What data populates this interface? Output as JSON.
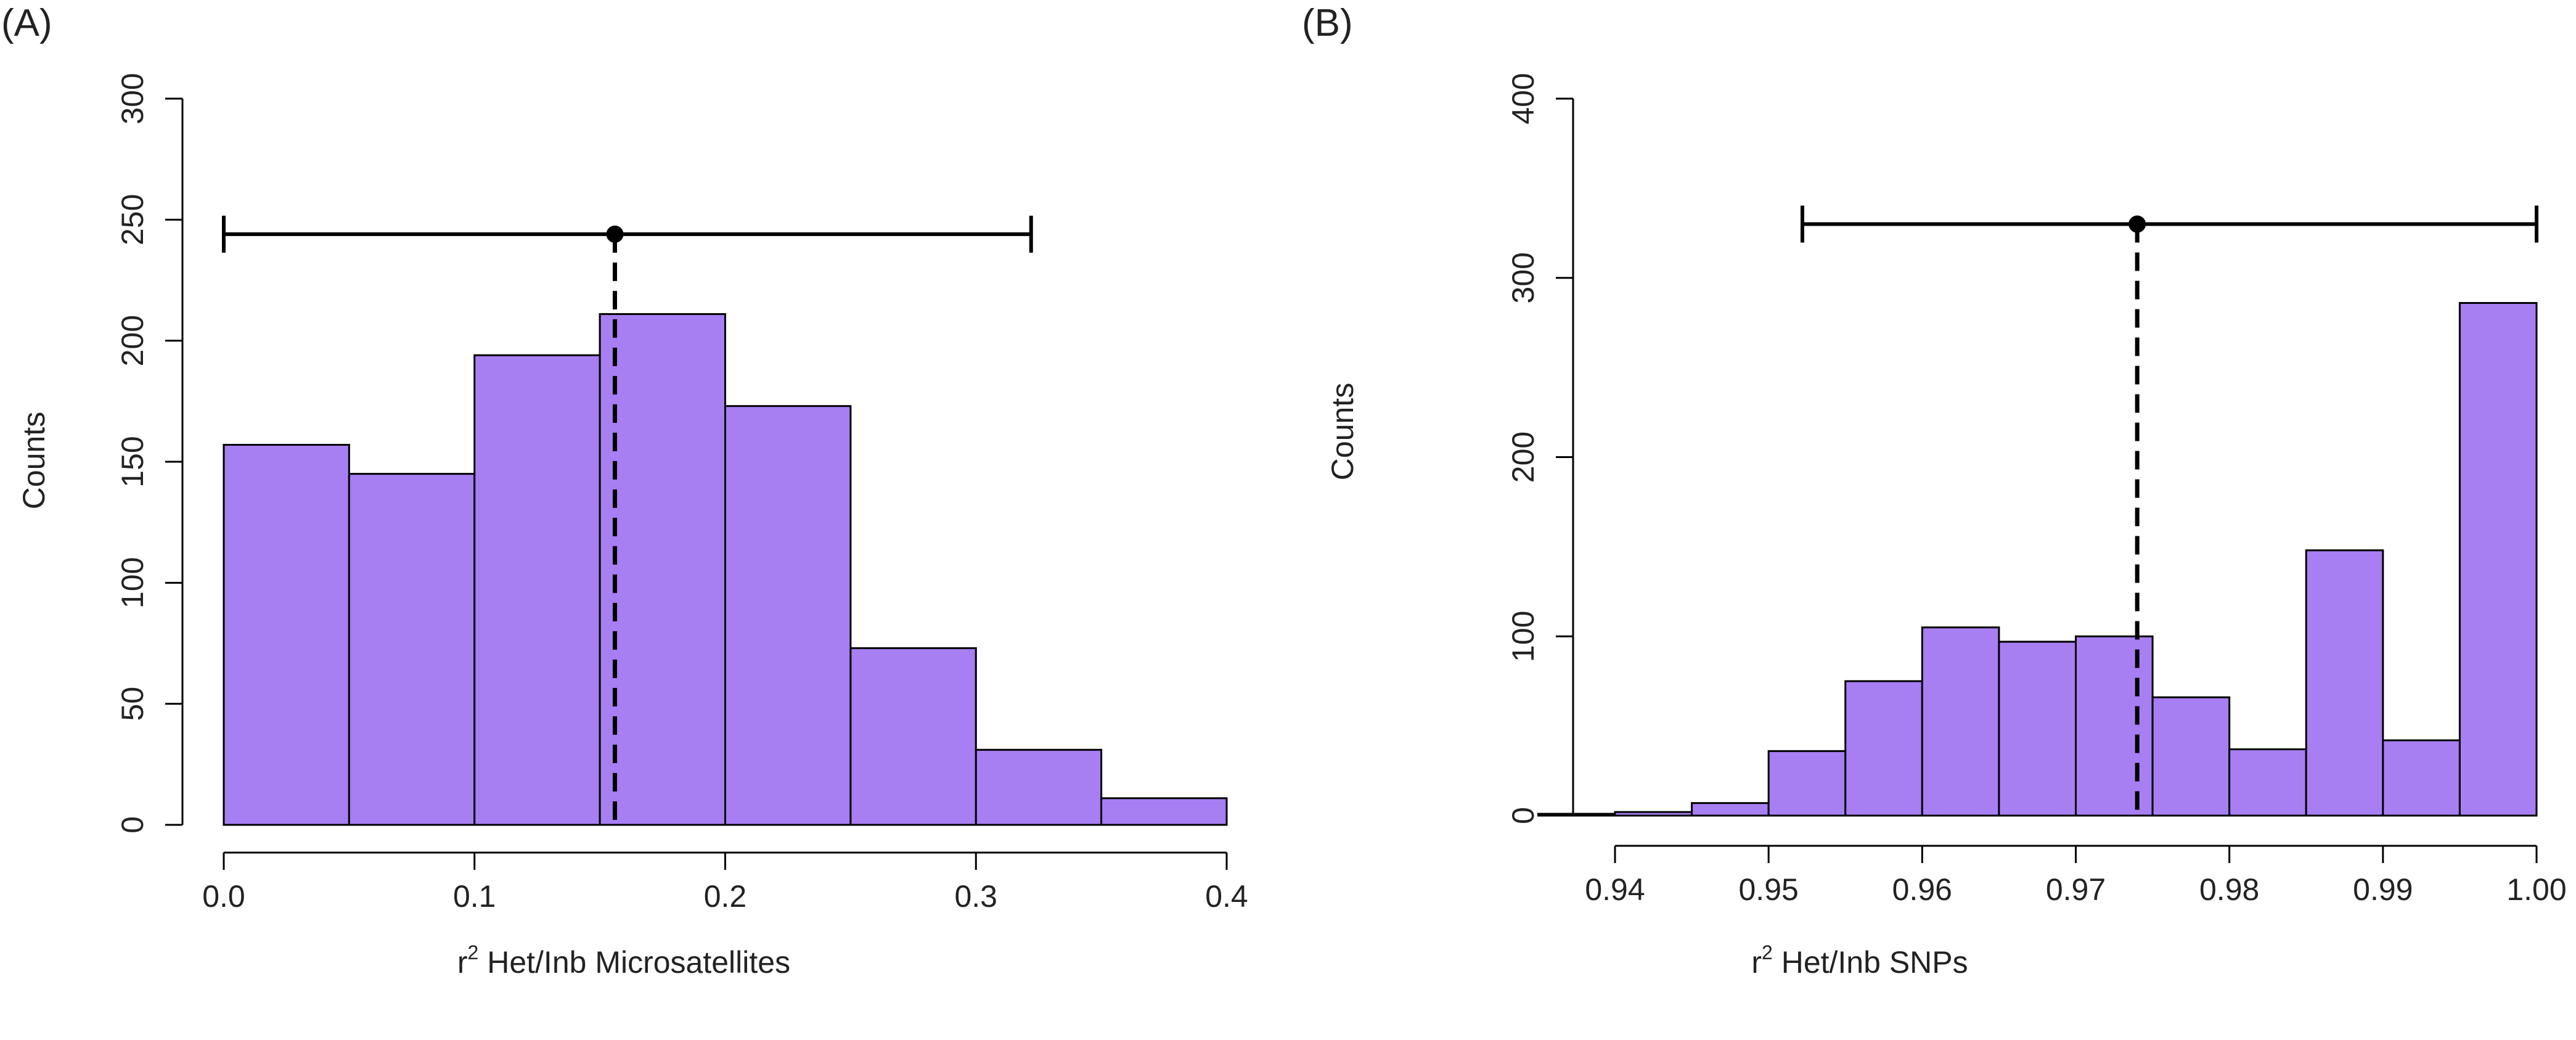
{
  "colors": {
    "bar_fill": "#a87ef3",
    "ink": "#000000"
  },
  "chart_data": [
    {
      "type": "bar",
      "panel_label": "(A)",
      "xlabel_sup": "2",
      "xlabel_pre": "r",
      "xlabel_post": " Het/Inb Microsatellites",
      "ylabel": "Counts",
      "xlim": [
        0.0,
        0.4
      ],
      "ylim": [
        0,
        300
      ],
      "xticks": [
        0.0,
        0.1,
        0.2,
        0.3,
        0.4
      ],
      "xtick_labels": [
        "0.0",
        "0.1",
        "0.2",
        "0.3",
        "0.4"
      ],
      "yticks": [
        0,
        50,
        100,
        150,
        200,
        250,
        300
      ],
      "ytick_labels": [
        "0",
        "50",
        "100",
        "150",
        "200",
        "250",
        "300"
      ],
      "bin_edges": [
        0.0,
        0.05,
        0.1,
        0.15,
        0.2,
        0.25,
        0.3,
        0.35,
        0.4
      ],
      "values": [
        157,
        145,
        194,
        211,
        173,
        73,
        31,
        11
      ],
      "interval": {
        "low": 0.0,
        "high": 0.322,
        "point": 0.156,
        "y": 244
      },
      "mean_line_x": 0.156
    },
    {
      "type": "bar",
      "panel_label": "(B)",
      "xlabel_sup": "2",
      "xlabel_pre": "r",
      "xlabel_post": " Het/Inb SNPs",
      "ylabel": "Counts",
      "xlim": [
        0.94,
        1.0
      ],
      "ylim": [
        0,
        400
      ],
      "xticks": [
        0.94,
        0.95,
        0.96,
        0.97,
        0.98,
        0.99,
        1.0
      ],
      "xtick_labels": [
        "0.94",
        "0.95",
        "0.96",
        "0.97",
        "0.98",
        "0.99",
        "1.00"
      ],
      "yticks": [
        0,
        100,
        200,
        300,
        400
      ],
      "ytick_labels": [
        "0",
        "100",
        "200",
        "300",
        "400"
      ],
      "bin_edges": [
        0.935,
        0.94,
        0.945,
        0.95,
        0.955,
        0.96,
        0.965,
        0.97,
        0.975,
        0.98,
        0.985,
        0.99,
        0.995,
        1.0
      ],
      "values": [
        1,
        2,
        7,
        36,
        75,
        105,
        97,
        100,
        66,
        37,
        148,
        42,
        286
      ],
      "interval": {
        "low": 0.9522,
        "high": 1.0,
        "point": 0.974,
        "y": 330
      },
      "mean_line_x": 0.974
    }
  ]
}
